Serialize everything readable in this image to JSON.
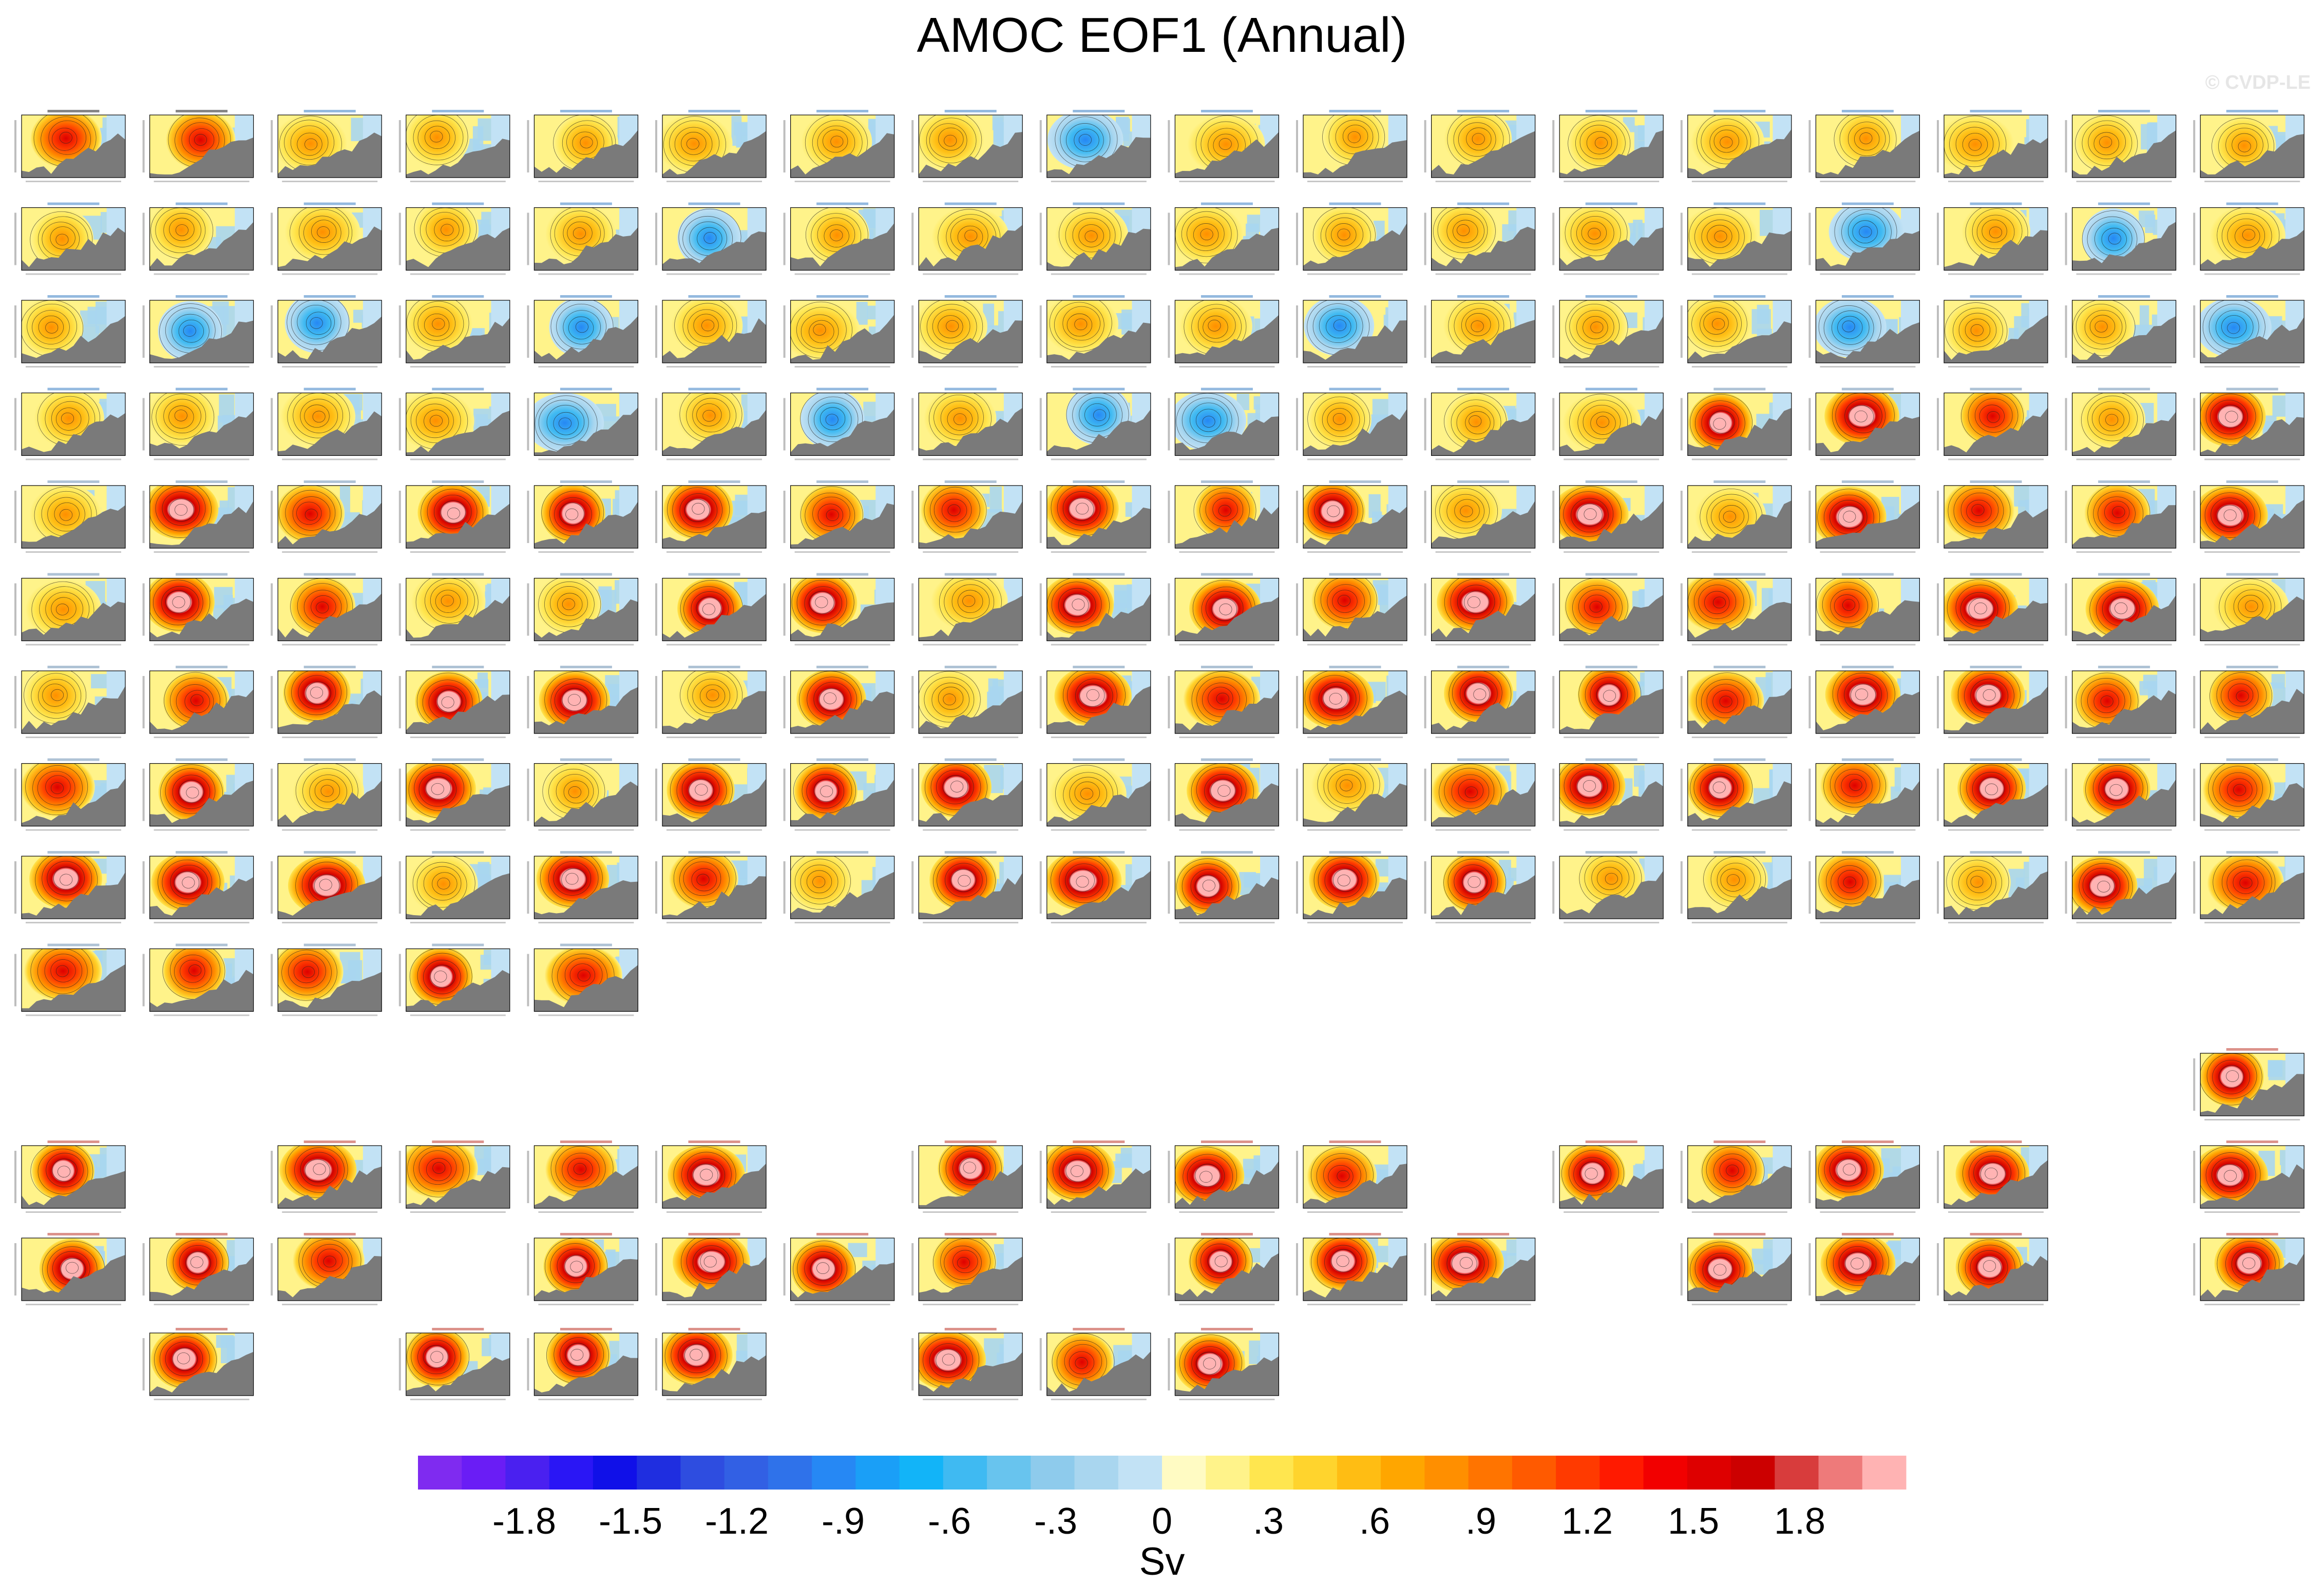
{
  "header": {
    "title": "AMOC EOF1 (Annual)",
    "watermark": "© CVDP-LE"
  },
  "chart_data": {
    "type": "heatmap",
    "title": "AMOC EOF1 (Annual)",
    "description_units": "Sv",
    "colorbar": {
      "unit_label": "Sv",
      "tick_labels": [
        "-1.8",
        "-1.5",
        "-1.2",
        "-.9",
        "-.6",
        "-.3",
        "0",
        ".3",
        ".6",
        ".9",
        "1.2",
        "1.5",
        "1.8"
      ],
      "tick_values": [
        -1.8,
        -1.5,
        -1.2,
        -0.9,
        -0.6,
        -0.3,
        0,
        0.3,
        0.6,
        0.9,
        1.2,
        1.5,
        1.8
      ],
      "range": [
        -2.1,
        2.1
      ],
      "colors": [
        "#7f2bf0",
        "#6a1df5",
        "#4a20f0",
        "#2a16f5",
        "#1010e8",
        "#1f2ee0",
        "#2e4de0",
        "#3260e4",
        "#2f72ea",
        "#2688f4",
        "#1a9ff7",
        "#12b4f8",
        "#3fbaf2",
        "#68c4ee",
        "#8ecbec",
        "#a9d6ef",
        "#c2e2f5",
        "#fffbc3",
        "#fff38a",
        "#ffe64f",
        "#ffd42d",
        "#ffbd13",
        "#ffa600",
        "#ff8f00",
        "#ff7400",
        "#ff5a00",
        "#ff3a00",
        "#ff1a00",
        "#f20000",
        "#de0000",
        "#cc0000",
        "#d83c3c",
        "#ee7a7a",
        "#ffb3b3"
      ]
    },
    "panel_groups": {
      "observations_header_panels": 2,
      "cesm2_cmip6_ensemble_panels": 29,
      "cesm1_le_panels": 118,
      "cesm2_le_panels": 36
    }
  }
}
